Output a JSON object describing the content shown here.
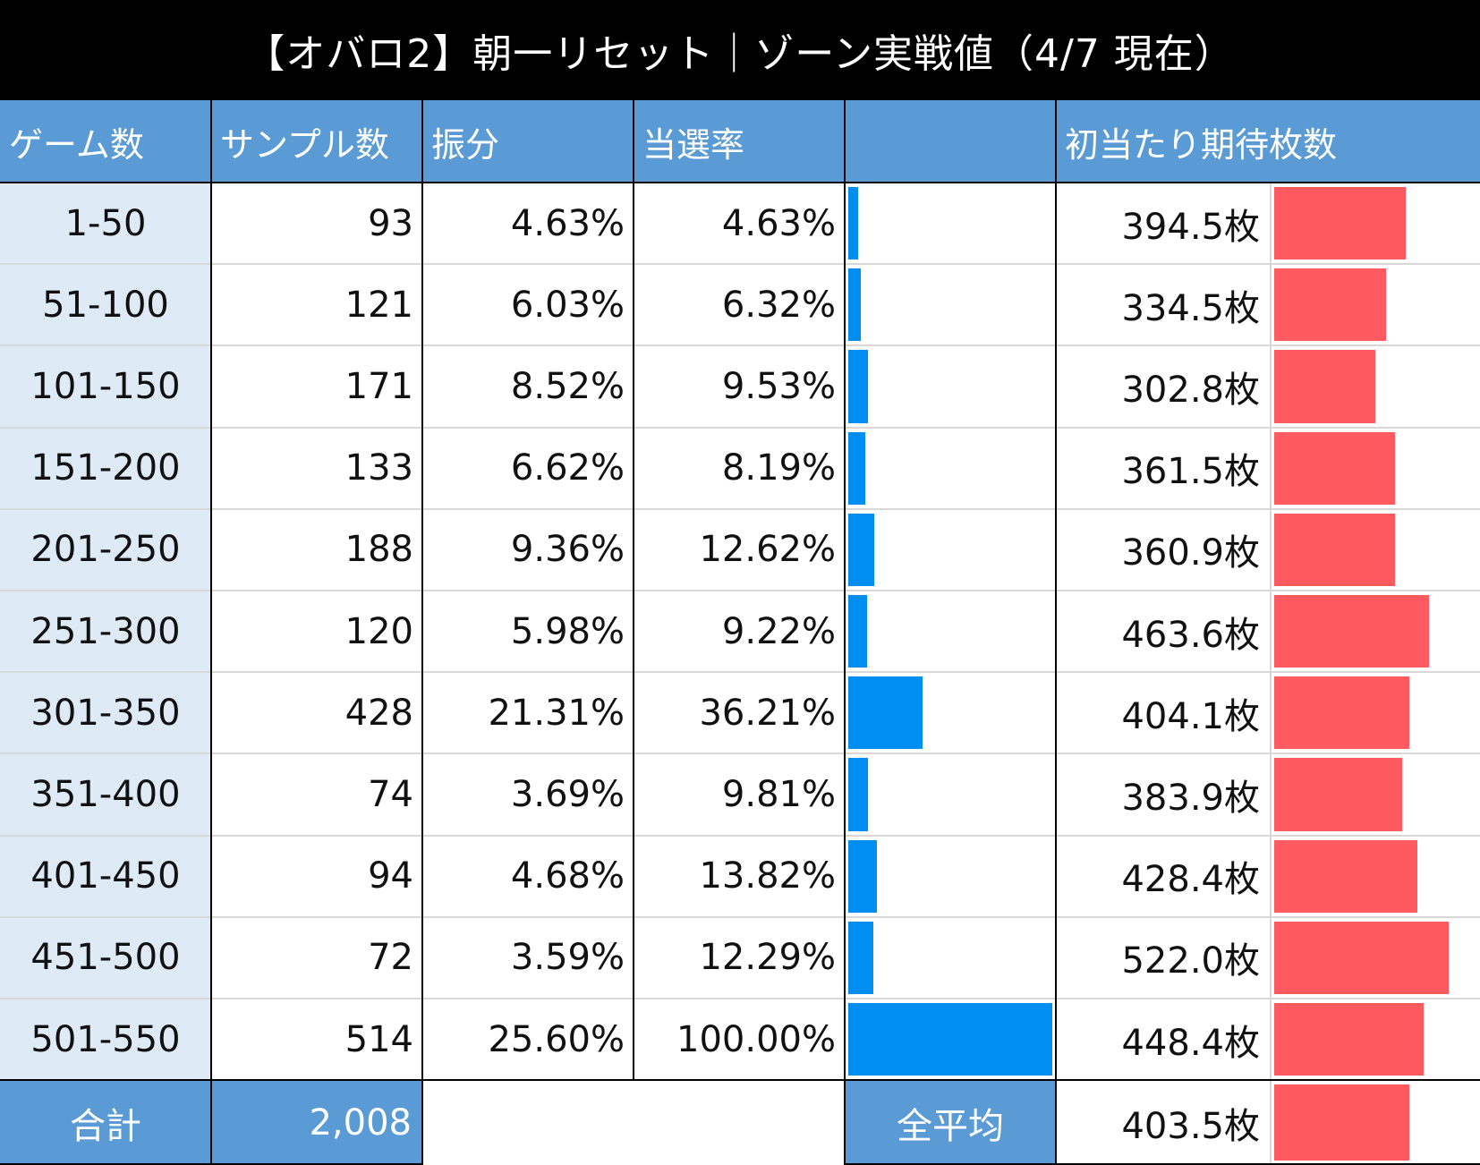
{
  "title": "【オバロ2】朝一リセット｜ゾーン実戦値（4/7 現在）",
  "colors": {
    "header_bg": "#5b9bd5",
    "zone_bg": "#deebf7",
    "rate_bar": "#008ef0",
    "coin_bar": "#ff5a5f",
    "title_bg": "#000000"
  },
  "headers": {
    "games": "ゲーム数",
    "samples": "サンプル数",
    "distribution": "振分",
    "win_rate": "当選率",
    "win_rate_bar": "",
    "expected_coins": "初当たり期待枚数"
  },
  "rows": [
    {
      "zone": "1-50",
      "samples": "93",
      "distribution": "4.63%",
      "win_rate": "4.63%",
      "expected_coins": "394.5枚"
    },
    {
      "zone": "51-100",
      "samples": "121",
      "distribution": "6.03%",
      "win_rate": "6.32%",
      "expected_coins": "334.5枚"
    },
    {
      "zone": "101-150",
      "samples": "171",
      "distribution": "8.52%",
      "win_rate": "9.53%",
      "expected_coins": "302.8枚"
    },
    {
      "zone": "151-200",
      "samples": "133",
      "distribution": "6.62%",
      "win_rate": "8.19%",
      "expected_coins": "361.5枚"
    },
    {
      "zone": "201-250",
      "samples": "188",
      "distribution": "9.36%",
      "win_rate": "12.62%",
      "expected_coins": "360.9枚"
    },
    {
      "zone": "251-300",
      "samples": "120",
      "distribution": "5.98%",
      "win_rate": "9.22%",
      "expected_coins": "463.6枚"
    },
    {
      "zone": "301-350",
      "samples": "428",
      "distribution": "21.31%",
      "win_rate": "36.21%",
      "expected_coins": "404.1枚"
    },
    {
      "zone": "351-400",
      "samples": "74",
      "distribution": "3.69%",
      "win_rate": "9.81%",
      "expected_coins": "383.9枚"
    },
    {
      "zone": "401-450",
      "samples": "94",
      "distribution": "4.68%",
      "win_rate": "13.82%",
      "expected_coins": "428.4枚"
    },
    {
      "zone": "451-500",
      "samples": "72",
      "distribution": "3.59%",
      "win_rate": "12.29%",
      "expected_coins": "522.0枚"
    },
    {
      "zone": "501-550",
      "samples": "514",
      "distribution": "25.60%",
      "win_rate": "100.00%",
      "expected_coins": "448.4枚"
    }
  ],
  "footer": {
    "total_label": "合計",
    "total_samples": "2,008",
    "average_label": "全平均",
    "average_coins": "403.5枚"
  },
  "chart_data": {
    "type": "table",
    "categories": [
      "1-50",
      "51-100",
      "101-150",
      "151-200",
      "201-250",
      "251-300",
      "301-350",
      "351-400",
      "401-450",
      "451-500",
      "501-550"
    ],
    "series": [
      {
        "name": "サンプル数",
        "values": [
          93,
          121,
          171,
          133,
          188,
          120,
          428,
          74,
          94,
          72,
          514
        ]
      },
      {
        "name": "振分",
        "values": [
          4.63,
          6.03,
          8.52,
          6.62,
          9.36,
          5.98,
          21.31,
          3.69,
          4.68,
          3.59,
          25.6
        ]
      },
      {
        "name": "当選率",
        "values": [
          4.63,
          6.32,
          9.53,
          8.19,
          12.62,
          9.22,
          36.21,
          9.81,
          13.82,
          12.29,
          100.0
        ]
      },
      {
        "name": "初当たり期待枚数",
        "values": [
          394.5,
          334.5,
          302.8,
          361.5,
          360.9,
          463.6,
          404.1,
          383.9,
          428.4,
          522.0,
          448.4
        ]
      }
    ],
    "win_rate_bar_max": 100,
    "coin_bar_max": 600,
    "average_coins": 403.5,
    "total_samples": 2008
  }
}
